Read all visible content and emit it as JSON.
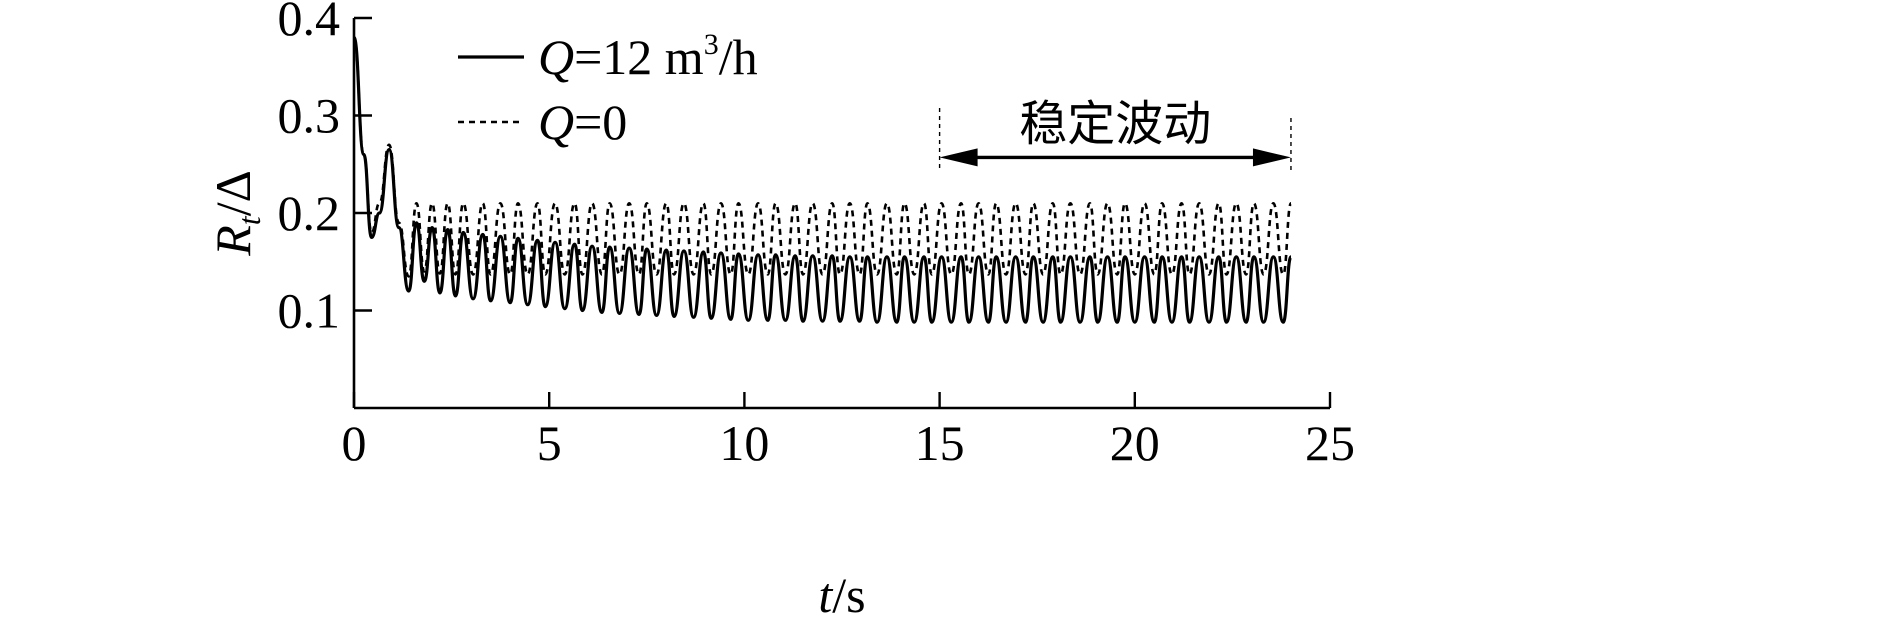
{
  "chart_data": {
    "type": "line",
    "xlabel": {
      "italic": "t",
      "rest": "/s"
    },
    "ylabel": {
      "italic": "R",
      "sub": "t",
      "rest": "/Δ"
    },
    "xlim": [
      0,
      25
    ],
    "ylim": [
      0,
      0.4
    ],
    "xticks": [
      0,
      5,
      10,
      15,
      20,
      25
    ],
    "xtick_labels": [
      "0",
      "5",
      "10",
      "15",
      "20",
      "25"
    ],
    "yticks": [
      0.1,
      0.2,
      0.3,
      0.4
    ],
    "ytick_labels": [
      "0.1",
      "0.2",
      "0.3",
      "0.4"
    ],
    "grid": false,
    "legend_position": "top-left",
    "series": [
      {
        "name": "Q=12 m³/h",
        "legend": {
          "italic": "Q",
          "rest": "=12 m",
          "sup": "3",
          "tail": "/h"
        },
        "style": "solid",
        "x": [
          0.0,
          0.25,
          0.45,
          0.65,
          0.9,
          1.15,
          1.4,
          1.6,
          1.8,
          2.0,
          2.2,
          2.4,
          2.6,
          2.8,
          3.05,
          3.3,
          3.5,
          3.75,
          4.0,
          4.2,
          4.45,
          4.7,
          4.9,
          5.15,
          5.4,
          5.65,
          5.85,
          6.1,
          6.35,
          6.55,
          6.8,
          7.05,
          7.3,
          7.5,
          7.75,
          8.0,
          8.2,
          8.45,
          8.7,
          8.95,
          9.15,
          9.4,
          9.65,
          9.85,
          10.1,
          10.35,
          10.6,
          10.8,
          11.05,
          11.3,
          11.5,
          11.75,
          12.0,
          12.25,
          12.45,
          12.7,
          12.95,
          13.15,
          13.4,
          13.65,
          13.9,
          14.1,
          14.35,
          14.6,
          14.8,
          15.05,
          15.3,
          15.55,
          15.75,
          16.0,
          16.25,
          16.45,
          16.7,
          16.95,
          17.2,
          17.4,
          17.65,
          17.9,
          18.1,
          18.35,
          18.6,
          18.85,
          19.05,
          19.3,
          19.55,
          19.75,
          20.0,
          20.25,
          20.5,
          20.7,
          20.95,
          21.2,
          21.4,
          21.65,
          21.9,
          22.15,
          22.35,
          22.6,
          22.85,
          23.05,
          23.3,
          23.55,
          23.8,
          24.0
        ],
        "y": [
          0.38,
          0.26,
          0.175,
          0.2,
          0.265,
          0.185,
          0.12,
          0.19,
          0.13,
          0.185,
          0.118,
          0.183,
          0.115,
          0.18,
          0.112,
          0.178,
          0.11,
          0.176,
          0.108,
          0.174,
          0.106,
          0.172,
          0.104,
          0.17,
          0.102,
          0.168,
          0.1,
          0.166,
          0.098,
          0.165,
          0.097,
          0.164,
          0.096,
          0.163,
          0.095,
          0.162,
          0.094,
          0.161,
          0.093,
          0.16,
          0.092,
          0.159,
          0.091,
          0.158,
          0.09,
          0.157,
          0.09,
          0.157,
          0.09,
          0.156,
          0.089,
          0.156,
          0.089,
          0.156,
          0.089,
          0.155,
          0.089,
          0.155,
          0.088,
          0.155,
          0.088,
          0.155,
          0.088,
          0.155,
          0.088,
          0.155,
          0.088,
          0.155,
          0.088,
          0.155,
          0.088,
          0.155,
          0.088,
          0.155,
          0.088,
          0.155,
          0.088,
          0.155,
          0.088,
          0.155,
          0.088,
          0.155,
          0.088,
          0.155,
          0.088,
          0.155,
          0.088,
          0.155,
          0.088,
          0.155,
          0.088,
          0.155,
          0.088,
          0.155,
          0.088,
          0.155,
          0.088,
          0.155,
          0.088,
          0.155,
          0.088,
          0.155,
          0.088,
          0.155
        ]
      },
      {
        "name": "Q=0",
        "legend": {
          "italic": "Q",
          "rest": "=0",
          "sup": "",
          "tail": ""
        },
        "style": "dashed",
        "x": [
          0.0,
          0.25,
          0.45,
          0.65,
          0.9,
          1.15,
          1.4,
          1.6,
          1.8,
          2.0,
          2.2,
          2.4,
          2.6,
          2.8,
          3.05,
          3.3,
          3.5,
          3.75,
          4.0,
          4.2,
          4.45,
          4.7,
          4.9,
          5.15,
          5.4,
          5.65,
          5.85,
          6.1,
          6.35,
          6.55,
          6.8,
          7.05,
          7.3,
          7.5,
          7.75,
          8.0,
          8.2,
          8.45,
          8.7,
          8.95,
          9.15,
          9.4,
          9.65,
          9.85,
          10.1,
          10.35,
          10.6,
          10.8,
          11.05,
          11.3,
          11.5,
          11.75,
          12.0,
          12.25,
          12.45,
          12.7,
          12.95,
          13.15,
          13.4,
          13.65,
          13.9,
          14.1,
          14.35,
          14.6,
          14.8,
          15.05,
          15.3,
          15.55,
          15.75,
          16.0,
          16.25,
          16.45,
          16.7,
          16.95,
          17.2,
          17.4,
          17.65,
          17.9,
          18.1,
          18.35,
          18.6,
          18.85,
          19.05,
          19.3,
          19.55,
          19.75,
          20.0,
          20.25,
          20.5,
          20.7,
          20.95,
          21.2,
          21.4,
          21.65,
          21.9,
          22.15,
          22.35,
          22.6,
          22.85,
          23.05,
          23.3,
          23.55,
          23.8,
          24.0
        ],
        "y": [
          0.38,
          0.26,
          0.18,
          0.21,
          0.27,
          0.19,
          0.135,
          0.21,
          0.14,
          0.21,
          0.138,
          0.21,
          0.137,
          0.21,
          0.137,
          0.21,
          0.137,
          0.21,
          0.137,
          0.21,
          0.137,
          0.21,
          0.137,
          0.21,
          0.137,
          0.21,
          0.137,
          0.21,
          0.137,
          0.21,
          0.137,
          0.21,
          0.137,
          0.21,
          0.137,
          0.21,
          0.137,
          0.21,
          0.137,
          0.21,
          0.137,
          0.21,
          0.137,
          0.21,
          0.137,
          0.21,
          0.137,
          0.21,
          0.137,
          0.21,
          0.137,
          0.21,
          0.137,
          0.21,
          0.137,
          0.21,
          0.137,
          0.21,
          0.137,
          0.21,
          0.137,
          0.21,
          0.137,
          0.21,
          0.137,
          0.21,
          0.137,
          0.21,
          0.137,
          0.21,
          0.137,
          0.21,
          0.137,
          0.21,
          0.137,
          0.21,
          0.137,
          0.21,
          0.137,
          0.21,
          0.137,
          0.21,
          0.137,
          0.21,
          0.137,
          0.21,
          0.137,
          0.21,
          0.137,
          0.21,
          0.137,
          0.21,
          0.137,
          0.21,
          0.137,
          0.21,
          0.137,
          0.21,
          0.137,
          0.21,
          0.137,
          0.21,
          0.137,
          0.21
        ]
      }
    ],
    "annotations": [
      {
        "text": "稳定波动",
        "type": "double-arrow-span",
        "x_start": 15,
        "x_end": 24,
        "y": 0.257
      }
    ]
  }
}
